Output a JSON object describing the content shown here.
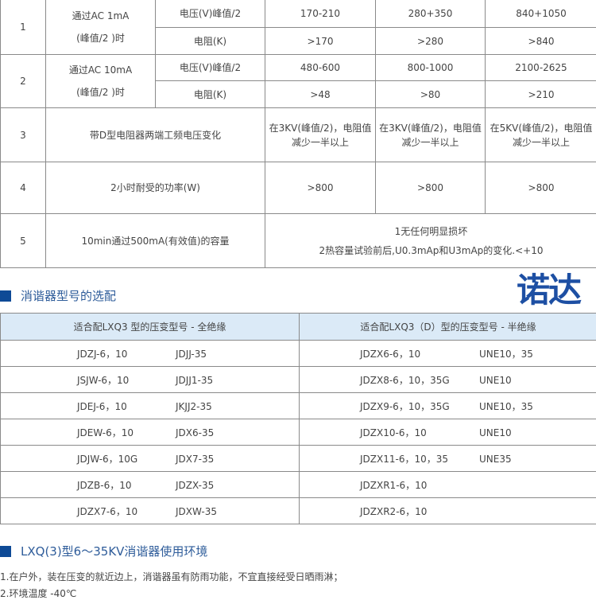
{
  "spec_table": {
    "rows": [
      {
        "no": "1",
        "item_lines": [
          "通过AC 1mA",
          "(峰值/2 )时"
        ],
        "sub": [
          {
            "param": "电压(V)峰值/2",
            "values": [
              "170-210",
              "280+350",
              "840+1050"
            ]
          },
          {
            "param": "电阻(K)",
            "values": [
              ">170",
              ">280",
              ">840"
            ]
          }
        ]
      },
      {
        "no": "2",
        "item_lines": [
          "通过AC 10mA",
          "(峰值/2 )时"
        ],
        "sub": [
          {
            "param": "电压(V)峰值/2",
            "values": [
              "480-600",
              "800-1000",
              "2100-2625"
            ]
          },
          {
            "param": "电阻(K)",
            "values": [
              ">48",
              ">80",
              ">210"
            ]
          }
        ]
      },
      {
        "no": "3",
        "item": "带D型电阻器两端工频电压变化",
        "values": [
          "在3KV(峰值/2)，电阻值减少一半以上",
          "在3KV(峰值/2)，电阻值减少一半以上",
          "在5KV(峰值/2)，电阻值减少一半以上"
        ]
      },
      {
        "no": "4",
        "item": "2小时耐受的功率(W)",
        "values": [
          ">800",
          ">800",
          ">800"
        ]
      },
      {
        "no": "5",
        "item": "10min通过500mA(有效值)的容量",
        "lines": [
          "1无任何明显损坏",
          "2热容量试验前后,U0.3mAp和U3mAp的变化.<+10"
        ]
      }
    ]
  },
  "watermark": "诺达",
  "section1": {
    "title": "消谐器型号的选配"
  },
  "model_table": {
    "headers": [
      "适合配LXQ3 型的压变型号 - 全绝缘",
      "适合配LXQ3（D）型的压变型号 - 半绝缘"
    ],
    "rows": [
      [
        [
          "JDZJ-6，10",
          "JDJJ-35"
        ],
        [
          "JDZX6-6，10",
          "UNE10，35"
        ]
      ],
      [
        [
          "JSJW-6，10",
          "JDJJ1-35"
        ],
        [
          "JDZX8-6，10，35G",
          "UNE10"
        ]
      ],
      [
        [
          "JDEJ-6，10",
          "JKJJ2-35"
        ],
        [
          "JDZX9-6，10，35G",
          "UNE10，35"
        ]
      ],
      [
        [
          "JDEW-6，10",
          "JDX6-35"
        ],
        [
          "JDZX10-6，10",
          "UNE10"
        ]
      ],
      [
        [
          "JDJW-6，10G",
          "JDX7-35"
        ],
        [
          "JDZX11-6，10，35",
          "UNE35"
        ]
      ],
      [
        [
          "JDZB-6，10",
          "JDZX-35"
        ],
        [
          "JDZXR1-6，10",
          ""
        ]
      ],
      [
        [
          "JDZX7-6，10",
          "JDXW-35"
        ],
        [
          "JDZXR2-6，10",
          ""
        ]
      ]
    ]
  },
  "section2": {
    "title": "LXQ(3)型6～35KV消谐器使用环境",
    "lines": [
      "1.在户外，装在压变的就近边上，消谐器虽有防雨功能，不宜直接经受日晒雨淋；",
      "2.环境温度 -40℃"
    ]
  }
}
